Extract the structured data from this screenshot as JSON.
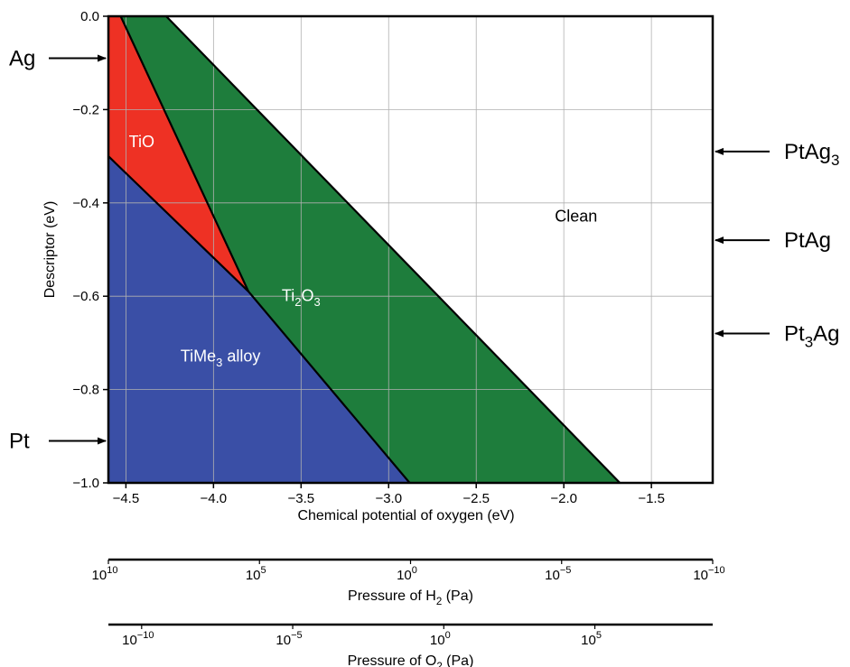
{
  "chart_data": {
    "type": "area",
    "xlabel": "Chemical potential of oxygen (eV)",
    "ylabel": "Descriptor (eV)",
    "xlim": [
      -4.6,
      -1.15
    ],
    "ylim": [
      -1.0,
      0.0
    ],
    "x_ticks": [
      -4.5,
      -4.0,
      -3.5,
      -3.0,
      -2.5,
      -2.0,
      -1.5
    ],
    "x_tick_labels": [
      "−4.5",
      "−4.0",
      "−3.5",
      "−3.0",
      "−2.5",
      "−2.0",
      "−1.5"
    ],
    "y_ticks": [
      0.0,
      -0.2,
      -0.4,
      -0.6,
      -0.8,
      -1.0
    ],
    "y_tick_labels": [
      "0.0",
      "−0.2",
      "−0.4",
      "−0.6",
      "−0.8",
      "−1.0"
    ],
    "grid": true,
    "regions": [
      {
        "label_base": "TiMe",
        "label_sub": "3",
        "label_tail": " alloy",
        "color": "#3a4fa6",
        "polygon": [
          [
            -4.6,
            -0.3
          ],
          [
            -3.8,
            -0.59
          ],
          [
            -2.88,
            -1.0
          ],
          [
            -4.6,
            -1.0
          ]
        ],
        "label_at": [
          -3.96,
          -0.74
        ]
      },
      {
        "label_base": "TiO",
        "label_sub": "",
        "label_tail": "",
        "color": "#ee3124",
        "polygon": [
          [
            -4.6,
            0.0
          ],
          [
            -4.53,
            0.0
          ],
          [
            -3.8,
            -0.59
          ],
          [
            -4.6,
            -0.3
          ]
        ],
        "label_at": [
          -4.41,
          -0.28
        ]
      },
      {
        "label_base": "Ti",
        "label_sub": "2",
        "label_tail": "O",
        "label_sub2": "3",
        "color": "#1e7d3c",
        "polygon": [
          [
            -4.53,
            0.0
          ],
          [
            -4.27,
            0.0
          ],
          [
            -1.68,
            -1.0
          ],
          [
            -2.88,
            -1.0
          ],
          [
            -3.8,
            -0.59
          ]
        ],
        "label_at": [
          -3.5,
          -0.61
        ]
      },
      {
        "label_base": "Clean",
        "label_sub": "",
        "label_tail": "",
        "color": "#ffffff",
        "polygon": [],
        "label_at": [
          -1.93,
          -0.44
        ]
      }
    ],
    "boundaries": [
      [
        [
          -4.53,
          0.0
        ],
        [
          -3.8,
          -0.59
        ]
      ],
      [
        [
          -4.6,
          -0.3
        ],
        [
          -3.8,
          -0.59
        ],
        [
          -2.88,
          -1.0
        ]
      ],
      [
        [
          -4.27,
          0.0
        ],
        [
          -1.68,
          -1.0
        ]
      ]
    ],
    "left_markers": [
      {
        "label": "Ag",
        "y": -0.09
      },
      {
        "label": "Pt",
        "y": -0.91
      }
    ],
    "right_markers": [
      {
        "base": "PtAg",
        "sub": "3",
        "tail": "",
        "y": -0.29
      },
      {
        "base": "PtAg",
        "sub": "",
        "tail": "",
        "y": -0.48
      },
      {
        "base": "Pt",
        "sub": "3",
        "tail": "Ag",
        "y": -0.68
      }
    ],
    "secondary_axes": [
      {
        "label_base": "Pressure of H",
        "label_sub": "2",
        "label_tail": " (Pa)",
        "x_at_left": 10,
        "x_at_right": -10,
        "ticks": [
          10,
          5,
          0,
          -5,
          -10
        ],
        "tick_labels": [
          "10",
          "10",
          "10",
          "10",
          "10"
        ],
        "tick_exponents": [
          "10",
          "5",
          "0",
          "−5",
          "−10"
        ]
      },
      {
        "label_base": "Pressure of O",
        "label_sub": "2",
        "label_tail": " (Pa)",
        "x_at_left": -11.1,
        "x_at_right": 8.9,
        "ticks": [
          -10,
          -5,
          0,
          5
        ],
        "tick_labels": [
          "10",
          "10",
          "10",
          "10"
        ],
        "tick_exponents": [
          "−10",
          "−5",
          "0",
          "5"
        ]
      }
    ]
  }
}
